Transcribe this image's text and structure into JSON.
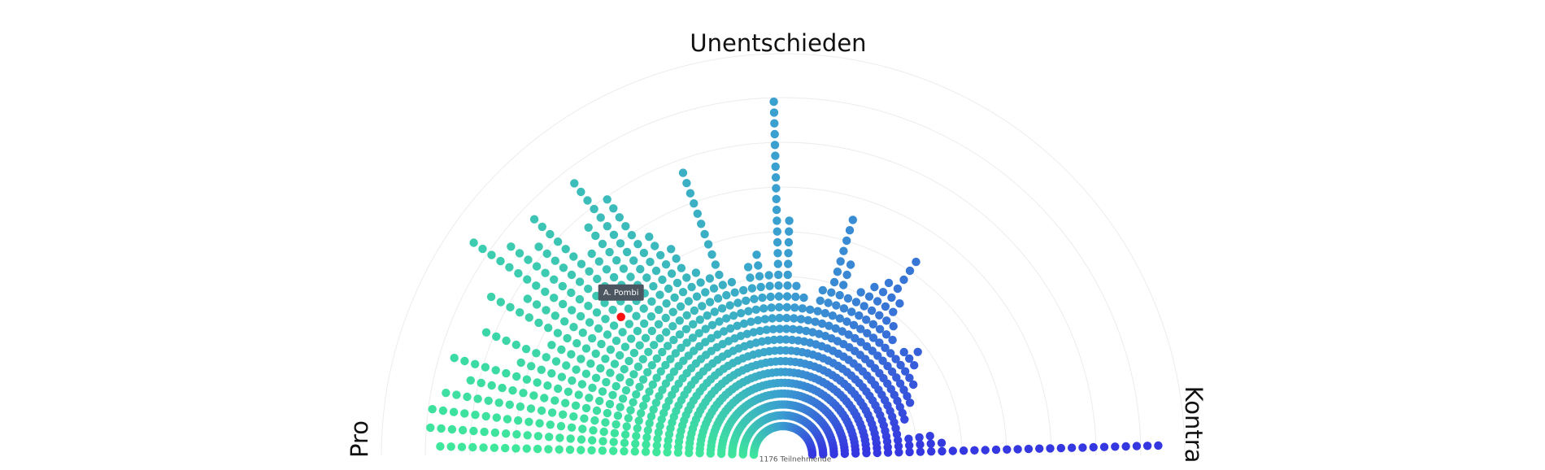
{
  "chart_data": {
    "type": "polar-dots",
    "title": "Unentschieden",
    "left_label": "Pro",
    "right_label": "Kontra",
    "total_label": "1176 Teilnehmende",
    "colors": [
      "#3ee89a",
      "#3a9fd0",
      "#3535e0"
    ],
    "values": [
      30,
      31,
      31,
      30,
      28,
      30,
      24,
      28,
      22,
      29,
      26,
      33,
      30,
      28,
      30,
      24,
      26,
      30,
      27,
      22,
      20,
      17,
      16,
      26,
      15,
      14,
      16,
      17,
      15,
      31,
      20,
      14,
      13,
      12,
      14,
      21,
      17,
      14,
      15,
      16,
      17,
      20,
      16,
      14,
      13,
      12,
      13,
      14,
      13,
      12,
      12,
      11,
      11,
      10,
      10,
      9,
      9,
      12,
      13,
      33
    ],
    "highlight": {
      "label": "A. Pombi",
      "ray": 13,
      "dot": 17,
      "color": "#ff1010"
    }
  }
}
